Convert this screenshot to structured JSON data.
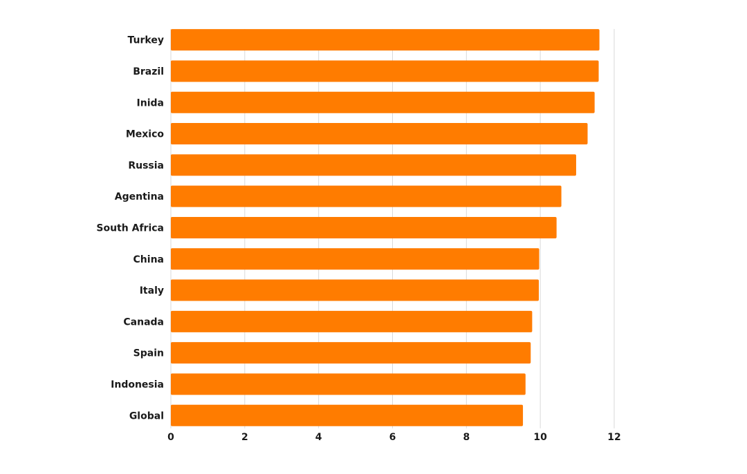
{
  "chart_data": {
    "type": "bar",
    "orientation": "horizontal",
    "categories": [
      "Turkey",
      "Brazil",
      "Inida",
      "Mexico",
      "Russia",
      "Agentina",
      "South Africa",
      "China",
      "Italy",
      "Canada",
      "Spain",
      "Indonesia",
      "Global"
    ],
    "values": [
      11.6,
      11.58,
      11.47,
      11.28,
      10.97,
      10.57,
      10.44,
      9.97,
      9.96,
      9.78,
      9.74,
      9.6,
      9.53
    ],
    "xlim": [
      0,
      12
    ],
    "xticks": [
      "0",
      "2",
      "4",
      "6",
      "8",
      "10",
      "12"
    ],
    "title": "",
    "xlabel": "",
    "ylabel": "",
    "grid": true,
    "colors": {
      "bar": "#ff7c00",
      "grid": "#d9d9d9",
      "text": "#1a1a1a"
    }
  }
}
